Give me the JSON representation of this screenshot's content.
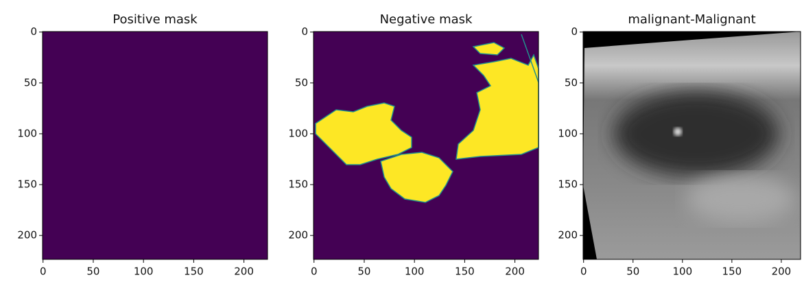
{
  "chart_data": [
    {
      "type": "image",
      "title": "Positive mask",
      "xlim": [
        -0.5,
        223.5
      ],
      "ylim": [
        223.5,
        -0.5
      ],
      "xticks": [
        0,
        50,
        100,
        150,
        200
      ],
      "yticks": [
        0,
        50,
        100,
        150,
        200
      ]
    },
    {
      "type": "image",
      "title": "Negative mask",
      "xlim": [
        -0.5,
        223.5
      ],
      "ylim": [
        223.5,
        -0.5
      ],
      "xticks": [
        0,
        50,
        100,
        150,
        200
      ],
      "yticks": [
        0,
        50,
        100,
        150,
        200
      ]
    },
    {
      "type": "image",
      "title": "malignant-Malignant",
      "xlim": [
        -0.5,
        219.5
      ],
      "ylim": [
        223.5,
        -0.5
      ],
      "xticks": [
        0,
        50,
        100,
        150,
        200
      ],
      "yticks": [
        0,
        50,
        100,
        150,
        200
      ]
    }
  ]
}
